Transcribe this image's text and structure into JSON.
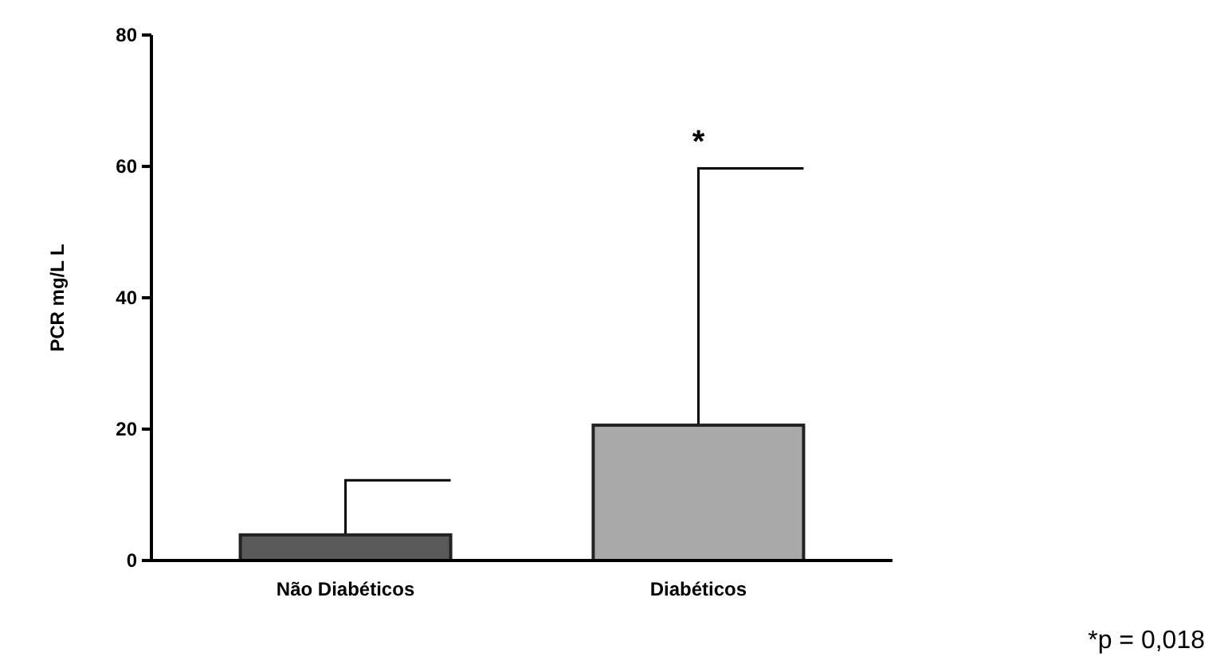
{
  "chart_data": {
    "type": "bar",
    "ylabel": "PCR mg/L L",
    "categories": [
      "Não Diabéticos",
      "Diabéticos"
    ],
    "values": [
      3.9,
      20.6
    ],
    "colors": [
      "#5a5a5a",
      "#a9a9a9"
    ],
    "errors": [
      [
        3.9,
        12.2
      ],
      [
        20.6,
        59.7
      ]
    ],
    "ylim": [
      0,
      80
    ],
    "yticks": [
      0,
      20,
      40,
      60,
      80
    ],
    "annotations": [
      "*",
      "*p = 0,018"
    ]
  }
}
